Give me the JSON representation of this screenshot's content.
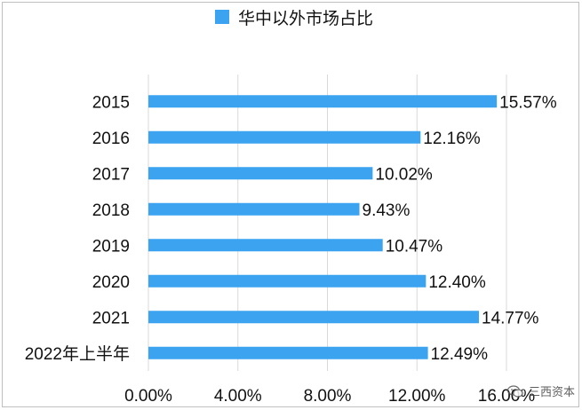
{
  "chart_data": {
    "type": "bar",
    "orientation": "horizontal",
    "categories": [
      "2015",
      "2016",
      "2017",
      "2018",
      "2019",
      "2020",
      "2021",
      "2022年上半年"
    ],
    "series": [
      {
        "name": "华中以外市场占比",
        "values": [
          15.57,
          12.16,
          10.02,
          9.43,
          10.47,
          12.4,
          14.77,
          12.49
        ],
        "labels": [
          "15.57%",
          "12.16%",
          "10.02%",
          "9.43%",
          "10.47%",
          "12.40%",
          "14.77%",
          "12.49%"
        ]
      }
    ],
    "xlim": [
      0,
      16
    ],
    "xticks": [
      "0.00%",
      "4.00%",
      "8.00%",
      "12.00%",
      "16.00%"
    ],
    "xlabel": "",
    "ylabel": "",
    "grid": true,
    "legend_position": "top",
    "bar_color": "#3ba3ef",
    "grid_color": "#d9d9d9"
  },
  "watermark": {
    "text": "三西资本",
    "icon": "wechat-icon"
  }
}
